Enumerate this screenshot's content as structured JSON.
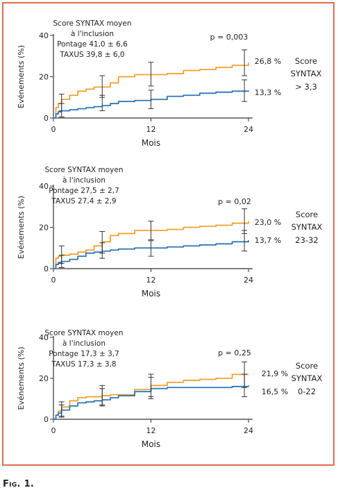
{
  "caption": "Fig. 1.",
  "colors": {
    "orange": "#f0a030",
    "blue": "#2e75b6",
    "frame": "#e06b52",
    "axis": "#333333"
  },
  "chart_data": [
    {
      "type": "line",
      "panel": "syntax-high",
      "xlabel": "Mois",
      "ylabel": "Evénements (%)",
      "xlim": [
        0,
        24
      ],
      "ylim": [
        0,
        40
      ],
      "xticks": [
        "0",
        "12",
        "24"
      ],
      "yticks": [
        "0",
        "20",
        "40"
      ],
      "info": [
        "Score SYNTAX moyen",
        "à l'inclusion",
        "Pontage 41,0 ± 6,6",
        "TAXUS 39,8 ± 6,0"
      ],
      "pvalue": "p = 0,003",
      "group_label": [
        "Score",
        "SYNTAX",
        "> 3,3"
      ],
      "series": [
        {
          "key": "orange",
          "end_label": "26,8 %",
          "x": [
            0,
            0.3,
            0.6,
            1,
            2,
            3,
            4,
            5,
            6,
            7,
            8,
            10,
            12,
            14,
            16,
            18,
            20,
            22,
            24
          ],
          "y": [
            0,
            5,
            7,
            9,
            11,
            13,
            14,
            15,
            15,
            17,
            20,
            21,
            21,
            21.5,
            23,
            23.5,
            24.5,
            25.5,
            26.8
          ],
          "errors": [
            {
              "x": 1,
              "y": 7.5,
              "lo": 3.5,
              "hi": 11.5
            },
            {
              "x": 6,
              "y": 14.5,
              "lo": 10,
              "hi": 20.5
            },
            {
              "x": 12,
              "y": 21,
              "lo": 15.5,
              "hi": 27
            },
            {
              "x": 23.5,
              "y": 26.8,
              "lo": 20.5,
              "hi": 33
            }
          ]
        },
        {
          "key": "blue",
          "end_label": "13,3 %",
          "x": [
            0,
            0.3,
            0.6,
            1,
            2,
            3,
            4,
            5,
            6,
            7,
            8,
            10,
            12,
            14,
            16,
            18,
            20,
            22,
            24
          ],
          "y": [
            0,
            2,
            3,
            3.5,
            4,
            4.5,
            5,
            5.5,
            6,
            7,
            8,
            8.5,
            9,
            10.5,
            11,
            12,
            12.5,
            13,
            13.3
          ],
          "errors": [
            {
              "x": 1,
              "y": 3.5,
              "lo": 0.5,
              "hi": 7
            },
            {
              "x": 6,
              "y": 7,
              "lo": 3.5,
              "hi": 11
            },
            {
              "x": 12,
              "y": 9,
              "lo": 4.5,
              "hi": 13.5
            },
            {
              "x": 23.5,
              "y": 13.3,
              "lo": 8,
              "hi": 18.5
            }
          ]
        }
      ]
    },
    {
      "type": "line",
      "panel": "syntax-mid",
      "xlabel": "Mois",
      "ylabel": "Evénements (%)",
      "xlim": [
        0,
        24
      ],
      "ylim": [
        0,
        40
      ],
      "xticks": [
        "0",
        "12",
        "24"
      ],
      "yticks": [
        "0",
        "20",
        "40"
      ],
      "info": [
        "Score SYNTAX moyen",
        "à l'inclusion",
        "Pontage 27,5 ± 2,7",
        "TAXUS 27,4 ± 2,9"
      ],
      "pvalue": "p = 0,02",
      "group_label": [
        "Score",
        "SYNTAX",
        "23-32"
      ],
      "series": [
        {
          "key": "orange",
          "end_label": "23,0 %",
          "x": [
            0,
            0.3,
            0.6,
            1,
            2,
            3,
            4,
            5,
            6,
            7,
            8,
            10,
            12,
            14,
            16,
            18,
            20,
            22,
            24
          ],
          "y": [
            0,
            5,
            6,
            6.5,
            7,
            8,
            9,
            11,
            13,
            16,
            17,
            18.5,
            18.5,
            19,
            20,
            20.5,
            21,
            22,
            23
          ],
          "errors": [
            {
              "x": 1,
              "y": 6.5,
              "lo": 2.5,
              "hi": 11
            },
            {
              "x": 6,
              "y": 12.5,
              "lo": 7.5,
              "hi": 18
            },
            {
              "x": 12,
              "y": 18.5,
              "lo": 14,
              "hi": 23
            },
            {
              "x": 23.5,
              "y": 23,
              "lo": 17,
              "hi": 29
            }
          ]
        },
        {
          "key": "blue",
          "end_label": "13,7 %",
          "x": [
            0,
            0.3,
            0.6,
            1,
            2,
            3,
            4,
            5,
            6,
            7,
            8,
            10,
            12,
            14,
            16,
            18,
            20,
            22,
            24
          ],
          "y": [
            0,
            2,
            3,
            3.5,
            4.5,
            6,
            7.5,
            8,
            8.5,
            9,
            9.5,
            10,
            10,
            10.5,
            11,
            11.5,
            12,
            13,
            13.7
          ],
          "errors": [
            {
              "x": 1,
              "y": 3.5,
              "lo": 0.5,
              "hi": 6.5
            },
            {
              "x": 6,
              "y": 8.5,
              "lo": 5,
              "hi": 12.5
            },
            {
              "x": 12,
              "y": 10,
              "lo": 6,
              "hi": 13.5
            },
            {
              "x": 23.5,
              "y": 13.7,
              "lo": 8.5,
              "hi": 18.5
            }
          ]
        }
      ]
    },
    {
      "type": "line",
      "panel": "syntax-low",
      "xlabel": "Mois",
      "ylabel": "Evénements (%)",
      "xlim": [
        0,
        24
      ],
      "ylim": [
        0,
        40
      ],
      "xticks": [
        "0",
        "12",
        "24"
      ],
      "yticks": [
        "0",
        "20",
        "40"
      ],
      "info": [
        "Score SYNTAX moyen",
        "à l'inclusion",
        "Pontage 17,3 ± 3,7",
        "TAXUS 17,3 ± 3,8"
      ],
      "pvalue": "p = 0,25",
      "group_label": [
        "Score",
        "SYNTAX",
        "0-22"
      ],
      "series": [
        {
          "key": "orange",
          "end_label": "21,9 %",
          "x": [
            0,
            0.3,
            0.6,
            1,
            2,
            3,
            4,
            5,
            6,
            7,
            8,
            10,
            12,
            14,
            16,
            18,
            20,
            22,
            24
          ],
          "y": [
            0,
            2,
            4,
            6,
            9,
            10.5,
            11,
            11,
            11.5,
            12,
            12,
            14.5,
            16.5,
            18,
            19,
            19.5,
            20,
            21.9,
            21.9
          ],
          "errors": [
            {
              "x": 1,
              "y": 5,
              "lo": 1.5,
              "hi": 8.5
            },
            {
              "x": 6,
              "y": 11.5,
              "lo": 7,
              "hi": 16.5
            },
            {
              "x": 12,
              "y": 16.5,
              "lo": 11,
              "hi": 22
            },
            {
              "x": 23.5,
              "y": 21.9,
              "lo": 15.5,
              "hi": 28
            }
          ]
        },
        {
          "key": "blue",
          "end_label": "16,5 %",
          "x": [
            0,
            0.3,
            0.6,
            1,
            2,
            3,
            4,
            5,
            6,
            7,
            8,
            10,
            12,
            14,
            16,
            18,
            20,
            22,
            24
          ],
          "y": [
            0,
            2,
            3,
            4.5,
            6.5,
            8,
            8.5,
            9,
            9.5,
            10.5,
            11.5,
            13.5,
            15,
            15.5,
            15.5,
            15.5,
            15.5,
            16,
            16.5
          ],
          "errors": [
            {
              "x": 1,
              "y": 4,
              "lo": 1,
              "hi": 7
            },
            {
              "x": 6,
              "y": 10,
              "lo": 6.5,
              "hi": 15
            },
            {
              "x": 12,
              "y": 15,
              "lo": 10,
              "hi": 20.5
            },
            {
              "x": 23.5,
              "y": 16.5,
              "lo": 11,
              "hi": 22
            }
          ]
        }
      ]
    }
  ]
}
